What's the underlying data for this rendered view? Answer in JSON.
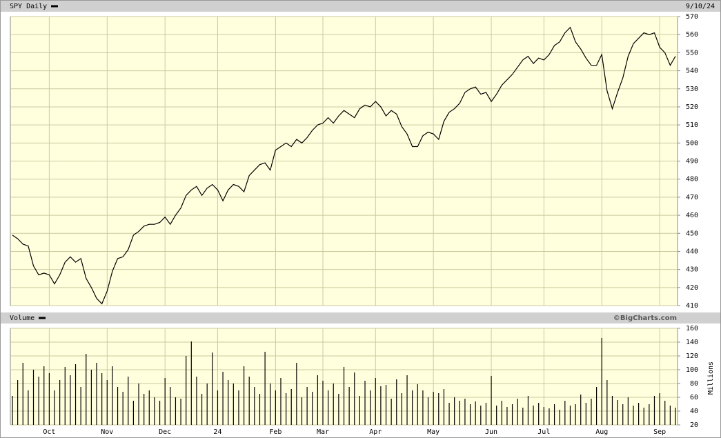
{
  "chart_data": [
    {
      "type": "line",
      "title": "SPY Daily",
      "date": "9/10/24",
      "color": "#000000",
      "values": [
        449,
        447,
        444,
        443,
        432,
        427,
        428,
        427,
        422,
        427,
        434,
        437,
        434,
        436,
        425,
        420,
        414,
        411,
        418,
        429,
        436,
        437,
        441,
        449,
        451,
        454,
        455,
        455,
        456,
        459,
        455,
        460,
        464,
        471,
        474,
        476,
        471,
        475,
        477,
        474,
        468,
        474,
        477,
        476,
        473,
        482,
        485,
        488,
        489,
        485,
        496,
        498,
        500,
        498,
        502,
        500,
        503,
        507,
        510,
        511,
        514,
        511,
        515,
        518,
        516,
        514,
        519,
        521,
        520,
        523,
        520,
        515,
        518,
        516,
        509,
        505,
        498,
        498,
        504,
        506,
        505,
        502,
        512,
        517,
        519,
        522,
        528,
        530,
        531,
        527,
        528,
        523,
        527,
        532,
        535,
        538,
        542,
        546,
        548,
        544,
        547,
        546,
        549,
        554,
        556,
        561,
        564,
        556,
        552,
        547,
        543,
        543,
        549,
        529,
        519,
        528,
        536,
        548,
        555,
        558,
        561,
        560,
        561,
        553,
        550,
        543,
        548
      ],
      "ylim": [
        410,
        570
      ],
      "yticks": [
        410,
        420,
        430,
        440,
        450,
        460,
        470,
        480,
        490,
        500,
        510,
        520,
        530,
        540,
        550,
        560,
        570
      ],
      "grid": true
    },
    {
      "type": "bar",
      "title": "Volume",
      "note": "©BigCharts.com",
      "y_label": "Millions",
      "color": "#000000",
      "categories": [
        null,
        null,
        null,
        null,
        null,
        null,
        null,
        "Oct",
        null,
        null,
        null,
        null,
        null,
        null,
        null,
        null,
        null,
        null,
        "Nov",
        null,
        null,
        null,
        null,
        null,
        null,
        null,
        null,
        null,
        null,
        "Dec",
        null,
        null,
        null,
        null,
        null,
        null,
        null,
        null,
        null,
        "24",
        null,
        null,
        null,
        null,
        null,
        null,
        null,
        null,
        null,
        null,
        "Feb",
        null,
        null,
        null,
        null,
        null,
        null,
        null,
        null,
        "Mar",
        null,
        null,
        null,
        null,
        null,
        null,
        null,
        null,
        null,
        "Apr",
        null,
        null,
        null,
        null,
        null,
        null,
        null,
        null,
        null,
        null,
        "May",
        null,
        null,
        null,
        null,
        null,
        null,
        null,
        null,
        null,
        null,
        "Jun",
        null,
        null,
        null,
        null,
        null,
        null,
        null,
        null,
        null,
        "Jul",
        null,
        null,
        null,
        null,
        null,
        null,
        null,
        null,
        null,
        null,
        "Aug",
        null,
        null,
        null,
        null,
        null,
        null,
        null,
        null,
        null,
        null,
        "Sep",
        null,
        null,
        null
      ],
      "values": [
        62,
        85,
        110,
        70,
        100,
        90,
        105,
        95,
        70,
        85,
        104,
        92,
        108,
        75,
        123,
        100,
        110,
        95,
        85,
        105,
        75,
        68,
        90,
        55,
        80,
        65,
        70,
        60,
        55,
        88,
        75,
        60,
        58,
        120,
        141,
        90,
        65,
        80,
        125,
        70,
        97,
        85,
        80,
        70,
        105,
        90,
        75,
        65,
        126,
        80,
        70,
        88,
        66,
        72,
        110,
        60,
        75,
        68,
        92,
        84,
        70,
        80,
        65,
        104,
        75,
        96,
        62,
        84,
        70,
        88,
        76,
        78,
        58,
        86,
        66,
        92,
        70,
        79,
        70,
        60,
        68,
        66,
        72,
        52,
        60,
        55,
        58,
        50,
        54,
        48,
        52,
        91,
        48,
        55,
        46,
        50,
        58,
        45,
        62,
        48,
        52,
        46,
        44,
        50,
        42,
        55,
        48,
        50,
        64,
        52,
        58,
        75,
        146,
        85,
        62,
        56,
        50,
        60,
        48,
        52,
        45,
        50,
        62,
        66,
        55,
        48,
        45
      ],
      "ylim": [
        20,
        160
      ],
      "yticks": [
        20,
        40,
        60,
        80,
        100,
        120,
        140,
        160
      ],
      "grid": true
    }
  ]
}
